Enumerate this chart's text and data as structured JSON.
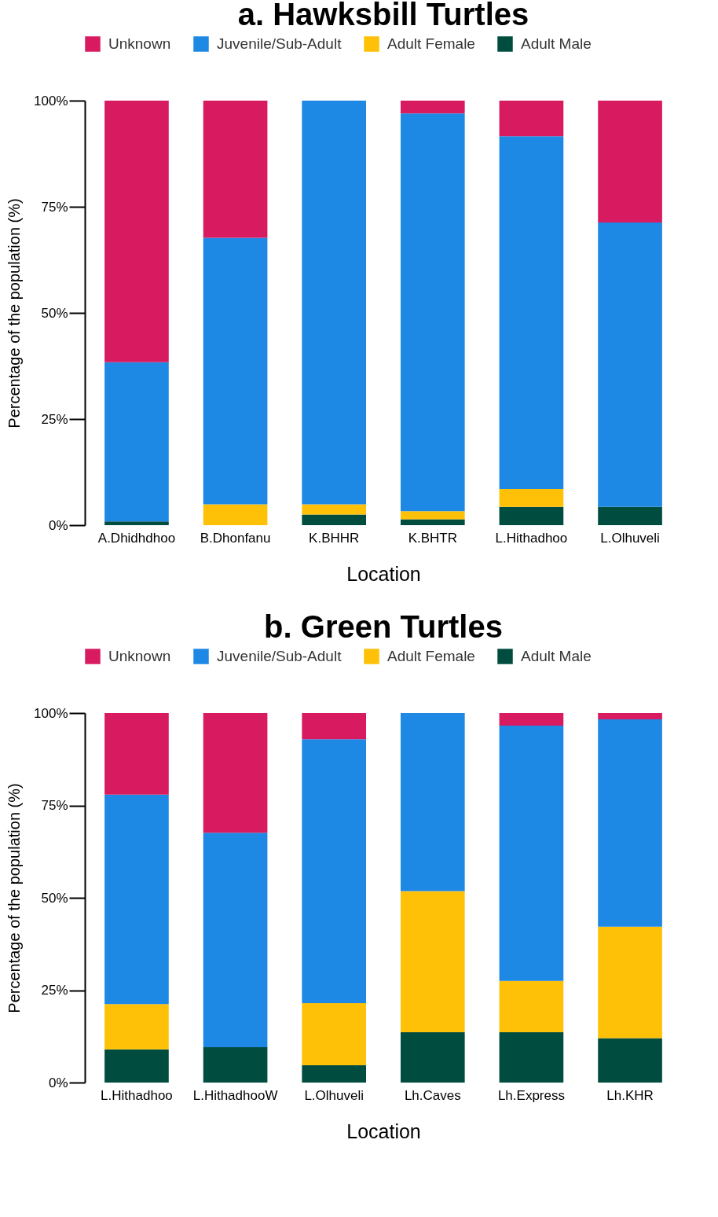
{
  "chart_data": [
    {
      "type": "bar",
      "title": "a. Hawksbill Turtles",
      "xlabel": "Location",
      "ylabel": "Percentage of the population (%)",
      "stacked": true,
      "legend": "top",
      "grid": false,
      "categories": [
        "A.Dhidhdhoo",
        "B.Dhonfanu",
        "K.BHHR",
        "K.BHTR",
        "L.Hithadhoo",
        "L.Olhuveli"
      ],
      "ylim": [
        0,
        100
      ],
      "yticks": [
        {
          "value": 0,
          "label": "0%"
        },
        {
          "value": 25,
          "label": "25%"
        },
        {
          "value": 50,
          "label": "50%"
        },
        {
          "value": 75,
          "label": "75%"
        },
        {
          "value": 100,
          "label": "100%"
        }
      ],
      "series": [
        {
          "name": "Adult Male",
          "color": "#004d40",
          "values": [
            0.9,
            0,
            2.5,
            1.4,
            4.3,
            4.3
          ]
        },
        {
          "name": "Adult Female",
          "color": "#ffc107",
          "values": [
            0,
            4.9,
            2.4,
            1.9,
            4.2,
            0
          ]
        },
        {
          "name": "Juvenile/Sub-Adult",
          "color": "#1e88e5",
          "values": [
            37.5,
            62.8,
            95.1,
            93.7,
            83.1,
            67.0
          ]
        },
        {
          "name": "Unknown",
          "color": "#d81b60",
          "values": [
            61.6,
            32.3,
            0,
            3.0,
            8.4,
            28.7
          ]
        }
      ]
    },
    {
      "type": "bar",
      "title": "b. Green Turtles",
      "xlabel": "Location",
      "ylabel": "Percentage of the population (%)",
      "stacked": true,
      "legend": "top",
      "grid": false,
      "categories": [
        "L.Hithadhoo",
        "L.HithadhooW",
        "L.Olhuveli",
        "Lh.Caves",
        "Lh.Express",
        "Lh.KHR"
      ],
      "ylim": [
        0,
        100
      ],
      "yticks": [
        {
          "value": 0,
          "label": "0%"
        },
        {
          "value": 25,
          "label": "25%"
        },
        {
          "value": 50,
          "label": "50%"
        },
        {
          "value": 75,
          "label": "75%"
        },
        {
          "value": 100,
          "label": "100%"
        }
      ],
      "series": [
        {
          "name": "Adult Male",
          "color": "#004d40",
          "values": [
            9.0,
            9.6,
            4.7,
            13.6,
            13.6,
            12.0
          ]
        },
        {
          "name": "Adult Female",
          "color": "#ffc107",
          "values": [
            12.2,
            0,
            16.8,
            38.2,
            13.9,
            30.2
          ]
        },
        {
          "name": "Juvenile/Sub-Adult",
          "color": "#1e88e5",
          "values": [
            56.7,
            58.0,
            71.4,
            48.2,
            69.1,
            56.1
          ]
        },
        {
          "name": "Unknown",
          "color": "#d81b60",
          "values": [
            22.1,
            32.4,
            7.1,
            0,
            3.4,
            1.7
          ]
        }
      ]
    }
  ]
}
